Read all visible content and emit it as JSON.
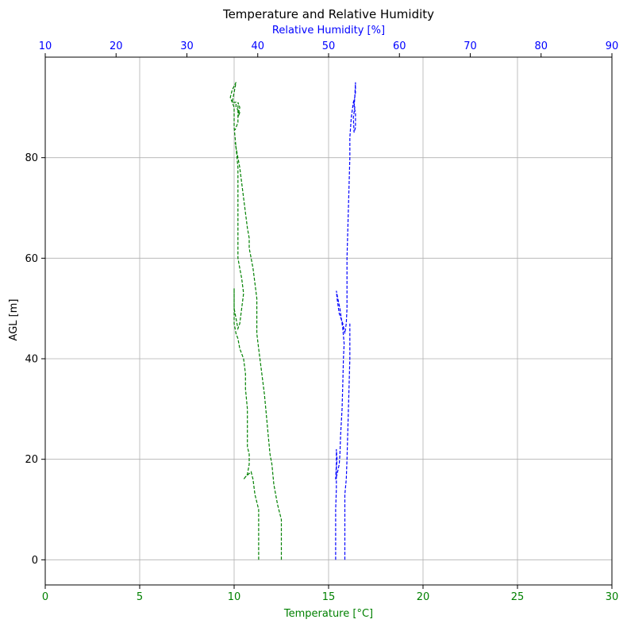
{
  "chart_data": {
    "type": "line",
    "title": "Temperature and Relative Humidity",
    "ylabel": "AGL [m]",
    "ylim": [
      -5,
      100
    ],
    "yticks": [
      0,
      20,
      40,
      60,
      80
    ],
    "grid": true,
    "bottom_axis": {
      "label": "Temperature [°C]",
      "range": [
        0,
        30
      ],
      "ticks": [
        0,
        5,
        10,
        15,
        20,
        25,
        30
      ],
      "color": "#008000"
    },
    "top_axis": {
      "label": "Relative Humidity [%]",
      "range": [
        10,
        90
      ],
      "ticks": [
        10,
        20,
        30,
        40,
        50,
        60,
        70,
        80,
        90
      ],
      "color": "#0000ff"
    },
    "series": [
      {
        "axis": "bottom",
        "color": "#008000",
        "style": "dashed",
        "points": [
          [
            11.3,
            0
          ],
          [
            11.3,
            5
          ],
          [
            11.3,
            10
          ],
          [
            11.1,
            13
          ],
          [
            11.0,
            16
          ],
          [
            10.9,
            17.5
          ],
          [
            10.6,
            16.5
          ],
          [
            10.5,
            16
          ],
          [
            10.7,
            17
          ],
          [
            10.8,
            19
          ],
          [
            10.8,
            21
          ],
          [
            10.7,
            22.5
          ],
          [
            10.7,
            26
          ],
          [
            10.7,
            30
          ],
          [
            10.6,
            34
          ],
          [
            10.6,
            37
          ],
          [
            10.5,
            40
          ],
          [
            10.3,
            42
          ],
          [
            10.2,
            44
          ],
          [
            10.1,
            45
          ],
          [
            10.0,
            47
          ],
          [
            10.0,
            50
          ],
          [
            10.0,
            54
          ],
          [
            10.0,
            50
          ],
          [
            10.2,
            46
          ],
          [
            10.3,
            47
          ],
          [
            10.4,
            50
          ],
          [
            10.5,
            53
          ],
          [
            10.4,
            56
          ],
          [
            10.3,
            58
          ],
          [
            10.2,
            60
          ],
          [
            10.2,
            63
          ],
          [
            10.2,
            68
          ],
          [
            10.2,
            73
          ],
          [
            10.2,
            78
          ],
          [
            10.1,
            82
          ],
          [
            10.05,
            84
          ],
          [
            10.0,
            86
          ],
          [
            10.0,
            88
          ],
          [
            10.0,
            90
          ],
          [
            9.9,
            91
          ],
          [
            9.8,
            92
          ],
          [
            9.9,
            93.5
          ],
          [
            10.1,
            95
          ],
          [
            10.0,
            93
          ],
          [
            9.9,
            91
          ],
          [
            10.1,
            91
          ],
          [
            10.1,
            90
          ],
          [
            10.3,
            89
          ],
          [
            10.2,
            88
          ],
          [
            10.3,
            90
          ],
          [
            10.2,
            91
          ],
          [
            10.2,
            87
          ],
          [
            10.05,
            85.5
          ]
        ]
      },
      {
        "axis": "bottom",
        "color": "#008000",
        "style": "dashed",
        "points": [
          [
            12.5,
            0
          ],
          [
            12.5,
            5
          ],
          [
            12.5,
            8
          ],
          [
            12.3,
            11
          ],
          [
            12.1,
            15
          ],
          [
            12.0,
            19
          ],
          [
            11.9,
            21
          ],
          [
            11.8,
            25
          ],
          [
            11.7,
            29
          ],
          [
            11.6,
            33
          ],
          [
            11.5,
            36
          ],
          [
            11.4,
            39
          ],
          [
            11.3,
            42
          ],
          [
            11.2,
            45
          ],
          [
            11.2,
            48
          ],
          [
            11.2,
            52
          ],
          [
            11.1,
            55
          ],
          [
            11.0,
            58
          ],
          [
            10.9,
            60
          ],
          [
            10.8,
            62
          ],
          [
            10.8,
            64
          ],
          [
            10.7,
            66
          ],
          [
            10.6,
            69
          ],
          [
            10.5,
            72
          ],
          [
            10.4,
            75
          ],
          [
            10.3,
            78
          ],
          [
            10.2,
            80
          ],
          [
            10.1,
            82
          ],
          [
            10.05,
            83
          ]
        ]
      },
      {
        "axis": "top",
        "color": "#0000ff",
        "style": "dashed",
        "points": [
          [
            51.0,
            0
          ],
          [
            51.0,
            5
          ],
          [
            51.0,
            10
          ],
          [
            51.1,
            14
          ],
          [
            51.1,
            18
          ],
          [
            51.2,
            20
          ],
          [
            51.1,
            22
          ],
          [
            51.1,
            19
          ],
          [
            51.0,
            16
          ],
          [
            51.2,
            17
          ],
          [
            51.5,
            19
          ],
          [
            51.6,
            21
          ],
          [
            51.7,
            25
          ],
          [
            51.9,
            30
          ],
          [
            52.0,
            35
          ],
          [
            52.1,
            40
          ],
          [
            52.2,
            43
          ],
          [
            52.0,
            46
          ],
          [
            51.8,
            48
          ],
          [
            51.6,
            50
          ],
          [
            51.3,
            52
          ],
          [
            51.1,
            53.5
          ],
          [
            51.2,
            52
          ],
          [
            51.5,
            49
          ],
          [
            52.0,
            47
          ],
          [
            52.3,
            45
          ],
          [
            52.5,
            47
          ],
          [
            52.6,
            50
          ],
          [
            52.6,
            55
          ],
          [
            52.6,
            60
          ],
          [
            52.7,
            65
          ],
          [
            52.8,
            70
          ],
          [
            52.9,
            75
          ],
          [
            53.0,
            80
          ],
          [
            53.0,
            84
          ],
          [
            53.2,
            88
          ],
          [
            53.5,
            91
          ],
          [
            53.7,
            92
          ],
          [
            53.8,
            93
          ],
          [
            53.8,
            95
          ],
          [
            53.7,
            92
          ],
          [
            53.6,
            90
          ],
          [
            53.8,
            89
          ],
          [
            53.8,
            86
          ],
          [
            53.6,
            85
          ],
          [
            53.5,
            88
          ],
          [
            53.7,
            90
          ],
          [
            53.5,
            91.5
          ]
        ]
      },
      {
        "axis": "top",
        "color": "#0000ff",
        "style": "dashed",
        "points": [
          [
            52.3,
            0
          ],
          [
            52.3,
            5
          ],
          [
            52.3,
            10
          ],
          [
            52.3,
            13
          ],
          [
            52.5,
            16
          ],
          [
            52.6,
            20
          ],
          [
            52.7,
            25
          ],
          [
            52.8,
            30
          ],
          [
            52.9,
            35
          ],
          [
            53.0,
            40
          ],
          [
            53.0,
            44
          ],
          [
            53.0,
            47
          ]
        ]
      }
    ]
  }
}
